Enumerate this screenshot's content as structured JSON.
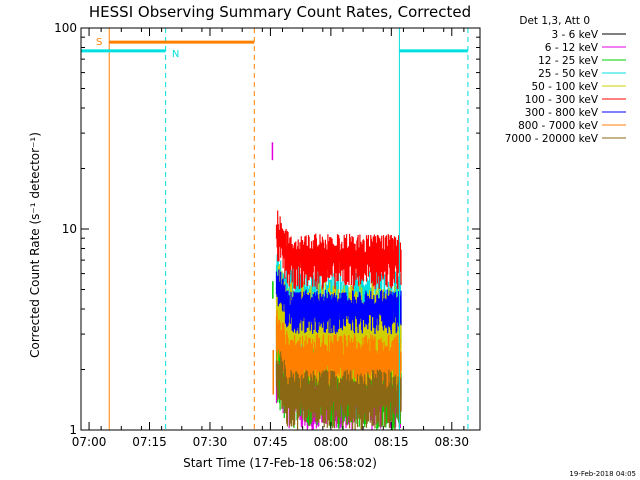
{
  "chart_data": {
    "type": "line",
    "title": "HESSI Observing Summary Count Rates, Corrected",
    "xlabel": "Start Time (17-Feb-18 06:58:02)",
    "ylabel": "Corrected Count Rate (s⁻¹ detector⁻¹)",
    "ylog": true,
    "xlim_min": [
      58,
      157
    ],
    "ylim": [
      1,
      100
    ],
    "x_ticks": [
      {
        "min": 60,
        "label": "07:00"
      },
      {
        "min": 75,
        "label": "07:15"
      },
      {
        "min": 90,
        "label": "07:30"
      },
      {
        "min": 105,
        "label": "07:45"
      },
      {
        "min": 120,
        "label": "08:00"
      },
      {
        "min": 135,
        "label": "08:15"
      },
      {
        "min": 150,
        "label": "08:30"
      }
    ],
    "y_ticks": [
      {
        "value": 1,
        "label": "1"
      },
      {
        "value": 10,
        "label": "10"
      },
      {
        "value": 100,
        "label": "100"
      }
    ],
    "legend_header": "Det 1,3, Att 0",
    "legend_position": "top-right",
    "series": [
      {
        "name": "3 - 6 keV",
        "color": "#000000",
        "band": [
          1.0,
          1.0
        ]
      },
      {
        "name": "6 - 12 keV",
        "color": "#e000e0",
        "band": [
          1.0,
          2.0
        ]
      },
      {
        "name": "12 - 25 keV",
        "color": "#00d000",
        "band": [
          1.0,
          3.0
        ]
      },
      {
        "name": "25 - 50 keV",
        "color": "#00e0e0",
        "band": [
          2.0,
          6.5
        ]
      },
      {
        "name": "50 - 100 keV",
        "color": "#d0d000",
        "band": [
          1.5,
          5.5
        ]
      },
      {
        "name": "100 - 300 keV",
        "color": "#ff0000",
        "band": [
          5.0,
          9.5
        ]
      },
      {
        "name": "300 - 800 keV",
        "color": "#0000ff",
        "band": [
          3.0,
          5.0
        ]
      },
      {
        "name": "800 - 7000 keV",
        "color": "#ff8000",
        "band": [
          1.5,
          3.0
        ]
      },
      {
        "name": "7000 - 20000 keV",
        "color": "#8b6914",
        "band": [
          1.0,
          2.0
        ]
      }
    ],
    "data_interval_min": [
      106.5,
      137.5
    ],
    "early_segments": [
      {
        "color": "#e000e0",
        "t": 105.5,
        "ylo": 22,
        "yhi": 27
      },
      {
        "color": "#00d000",
        "t": 105.6,
        "ylo": 4.5,
        "yhi": 5.5
      },
      {
        "color": "#ff8000",
        "t": 105.7,
        "ylo": 1.5,
        "yhi": 2.5
      }
    ],
    "annotations": {
      "saa_label": "S",
      "saa_color": "#ff8000",
      "saa_bar": {
        "t0": 65,
        "t1": 101,
        "y": 85
      },
      "saa_start_solid": 65,
      "saa_end_dashed": 101,
      "night_label": "N",
      "night_color": "#00e0e0",
      "night_bars": [
        {
          "t0": 58,
          "t1": 79,
          "y": 77
        },
        {
          "t0": 137,
          "t1": 154,
          "y": 77
        }
      ],
      "night_solid_lines": [
        58,
        137
      ],
      "night_dashed_lines": [
        79,
        154
      ]
    },
    "grid": false
  },
  "footer": {
    "date_stamp": "19-Feb-2018 04:05"
  }
}
